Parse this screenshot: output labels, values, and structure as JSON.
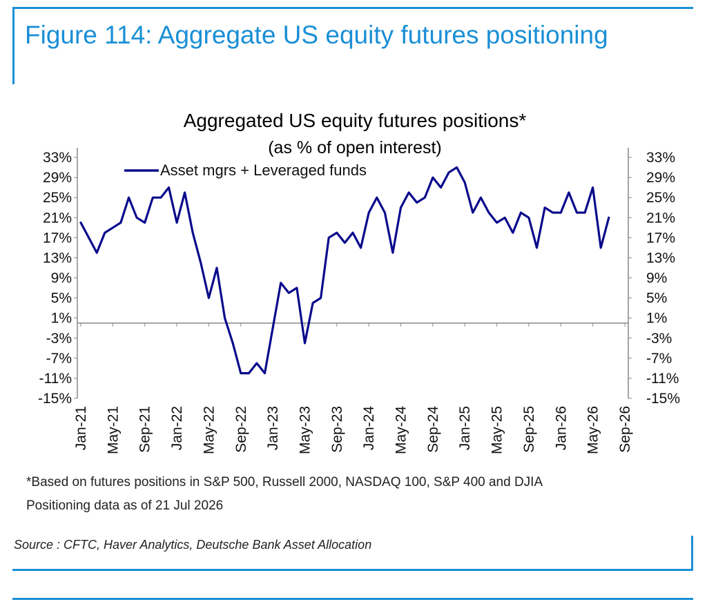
{
  "figure": {
    "title": "Figure 114: Aggregate US equity futures positioning",
    "source": "Source : CFTC, Haver Analytics, Deutsche Bank Asset Allocation",
    "footnotes": [
      "*Based on futures positions in S&P 500, Russell 2000, NASDAQ 100, S&P 400 and DJIA",
      "Positioning data as of 21 Jul 2026"
    ]
  },
  "colors": {
    "accent": "#1a8fd6",
    "series": "#0a0a8c",
    "axis": "#888888"
  },
  "chart_data": {
    "type": "line",
    "title": "Aggregated US equity futures positions*",
    "subtitle": "(as % of open interest)",
    "xlabel": "",
    "ylabel": "",
    "ylim": [
      -15,
      33
    ],
    "yticks": [
      "33%",
      "29%",
      "25%",
      "21%",
      "17%",
      "13%",
      "9%",
      "5%",
      "1%",
      "-3%",
      "-7%",
      "-11%",
      "-15%"
    ],
    "xticks": [
      "Jan-21",
      "May-21",
      "Sep-21",
      "Jan-22",
      "May-22",
      "Sep-22",
      "Jan-23",
      "May-23",
      "Sep-23",
      "Jan-24",
      "May-24",
      "Sep-24",
      "Jan-25",
      "May-25",
      "Sep-25",
      "Jan-26",
      "May-26",
      "Sep-26"
    ],
    "xlim": [
      "2021-01",
      "2026-09"
    ],
    "grid": false,
    "legend": "top-left",
    "zero_line": 0,
    "series": [
      {
        "name": "Asset mgrs + Leveraged funds",
        "x": [
          "2021-01",
          "2021-02",
          "2021-03",
          "2021-04",
          "2021-05",
          "2021-06",
          "2021-07",
          "2021-08",
          "2021-09",
          "2021-10",
          "2021-11",
          "2021-12",
          "2022-01",
          "2022-02",
          "2022-03",
          "2022-04",
          "2022-05",
          "2022-06",
          "2022-07",
          "2022-08",
          "2022-09",
          "2022-10",
          "2022-11",
          "2022-12",
          "2023-01",
          "2023-02",
          "2023-03",
          "2023-04",
          "2023-05",
          "2023-06",
          "2023-07",
          "2023-08",
          "2023-09",
          "2023-10",
          "2023-11",
          "2023-12",
          "2024-01",
          "2024-02",
          "2024-03",
          "2024-04",
          "2024-05",
          "2024-06",
          "2024-07",
          "2024-08",
          "2024-09",
          "2024-10",
          "2024-11",
          "2024-12",
          "2025-01",
          "2025-02",
          "2025-03",
          "2025-04",
          "2025-05",
          "2025-06",
          "2025-07",
          "2025-08",
          "2025-09",
          "2025-10",
          "2025-11",
          "2025-12",
          "2026-01",
          "2026-02",
          "2026-03",
          "2026-04",
          "2026-05",
          "2026-06",
          "2026-07"
        ],
        "values": [
          20,
          17,
          14,
          18,
          19,
          20,
          25,
          21,
          20,
          25,
          25,
          27,
          20,
          26,
          18,
          12,
          5,
          11,
          1,
          -4,
          -10,
          -10,
          -8,
          -10,
          -1,
          8,
          6,
          7,
          -4,
          4,
          5,
          17,
          18,
          16,
          18,
          15,
          22,
          25,
          22,
          14,
          23,
          26,
          24,
          25,
          29,
          27,
          30,
          31,
          28,
          22,
          25,
          22,
          20,
          21,
          18,
          22,
          21,
          15,
          23,
          22,
          22,
          26,
          22,
          22,
          27,
          15,
          21
        ]
      }
    ]
  }
}
